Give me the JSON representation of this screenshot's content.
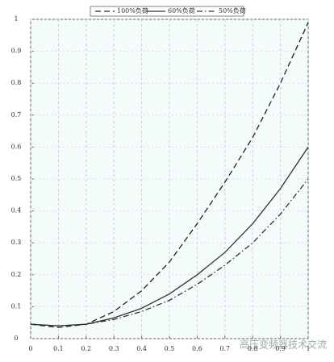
{
  "chart_data": {
    "type": "line",
    "x": [
      0,
      0.1,
      0.2,
      0.3,
      0.4,
      0.5,
      0.6,
      0.7,
      0.8,
      0.9,
      1
    ],
    "series": [
      {
        "name": "100%负荷",
        "color": "#222222",
        "style": "dashed",
        "values": [
          0.045,
          0.035,
          0.045,
          0.085,
          0.15,
          0.24,
          0.36,
          0.49,
          0.63,
          0.8,
          0.99
        ]
      },
      {
        "name": "60%负荷",
        "color": "#333333",
        "style": "solid",
        "values": [
          0.045,
          0.04,
          0.045,
          0.065,
          0.095,
          0.14,
          0.2,
          0.27,
          0.36,
          0.47,
          0.6
        ]
      },
      {
        "name": "50%负荷",
        "color": "#333333",
        "style": "dashdot",
        "values": [
          0.045,
          0.04,
          0.045,
          0.06,
          0.085,
          0.12,
          0.17,
          0.23,
          0.3,
          0.39,
          0.5
        ]
      }
    ],
    "xlim": [
      0,
      1
    ],
    "ylim": [
      0,
      1
    ],
    "xticks": [
      0,
      0.1,
      0.2,
      0.3,
      0.4,
      0.5,
      0.6,
      0.7,
      0.8,
      0.9,
      1
    ],
    "yticks": [
      0,
      0.1,
      0.2,
      0.3,
      0.4,
      0.5,
      0.6,
      0.7,
      0.8,
      0.9,
      1
    ],
    "grid": true,
    "legend": "top",
    "watermark": "高压变频器技术交流"
  }
}
